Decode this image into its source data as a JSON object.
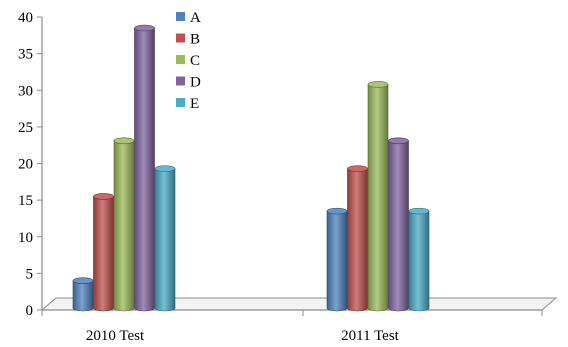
{
  "chart_data": {
    "type": "bar",
    "title": "",
    "xlabel": "",
    "ylabel": "",
    "categories": [
      "2010 Test",
      "2011 Test"
    ],
    "series": [
      {
        "name": "A",
        "values": [
          4,
          13.5
        ],
        "color": "#4f81bd"
      },
      {
        "name": "B",
        "values": [
          15.5,
          19.3
        ],
        "color": "#c0504d"
      },
      {
        "name": "C",
        "values": [
          23.1,
          30.8
        ],
        "color": "#9bbb59"
      },
      {
        "name": "D",
        "values": [
          38.5,
          23.1
        ],
        "color": "#8064a2"
      },
      {
        "name": "E",
        "values": [
          19.3,
          13.5
        ],
        "color": "#4bacc6"
      }
    ],
    "ylim": [
      0,
      40
    ],
    "yticks": [
      0,
      5,
      10,
      15,
      20,
      25,
      30,
      35,
      40
    ],
    "grid": false,
    "legend_position": "top-left, inside plot"
  }
}
